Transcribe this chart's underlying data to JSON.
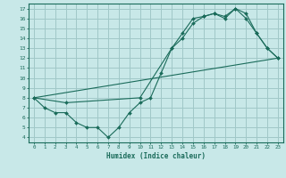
{
  "bg_color": "#c8e8e8",
  "grid_color": "#a0c8c8",
  "line_color": "#1a6b5a",
  "xlabel": "Humidex (Indice chaleur)",
  "xlim": [
    -0.5,
    23.5
  ],
  "ylim": [
    3.5,
    17.5
  ],
  "xticks": [
    0,
    1,
    2,
    3,
    4,
    5,
    6,
    7,
    8,
    9,
    10,
    11,
    12,
    13,
    14,
    15,
    16,
    17,
    18,
    19,
    20,
    21,
    22,
    23
  ],
  "yticks": [
    4,
    5,
    6,
    7,
    8,
    9,
    10,
    11,
    12,
    13,
    14,
    15,
    16,
    17
  ],
  "line1_x": [
    0,
    1,
    2,
    3,
    4,
    5,
    6,
    7,
    8,
    9,
    10,
    11,
    12,
    13,
    14,
    15,
    16,
    17,
    18,
    19,
    20,
    21,
    22,
    23
  ],
  "line1_y": [
    8.0,
    7.0,
    6.5,
    6.5,
    5.5,
    5.0,
    5.0,
    4.0,
    5.0,
    6.5,
    7.5,
    8.0,
    10.5,
    13.0,
    14.5,
    16.0,
    16.2,
    16.5,
    16.0,
    17.0,
    16.0,
    14.5,
    13.0,
    12.0
  ],
  "line2_x": [
    0,
    3,
    10,
    13,
    14,
    15,
    16,
    17,
    18,
    19,
    20,
    21,
    22,
    23
  ],
  "line2_y": [
    8.0,
    7.5,
    8.0,
    13.0,
    14.0,
    15.5,
    16.2,
    16.5,
    16.2,
    17.0,
    16.5,
    14.5,
    13.0,
    12.0
  ],
  "line3_x": [
    0,
    23
  ],
  "line3_y": [
    8.0,
    12.0
  ]
}
